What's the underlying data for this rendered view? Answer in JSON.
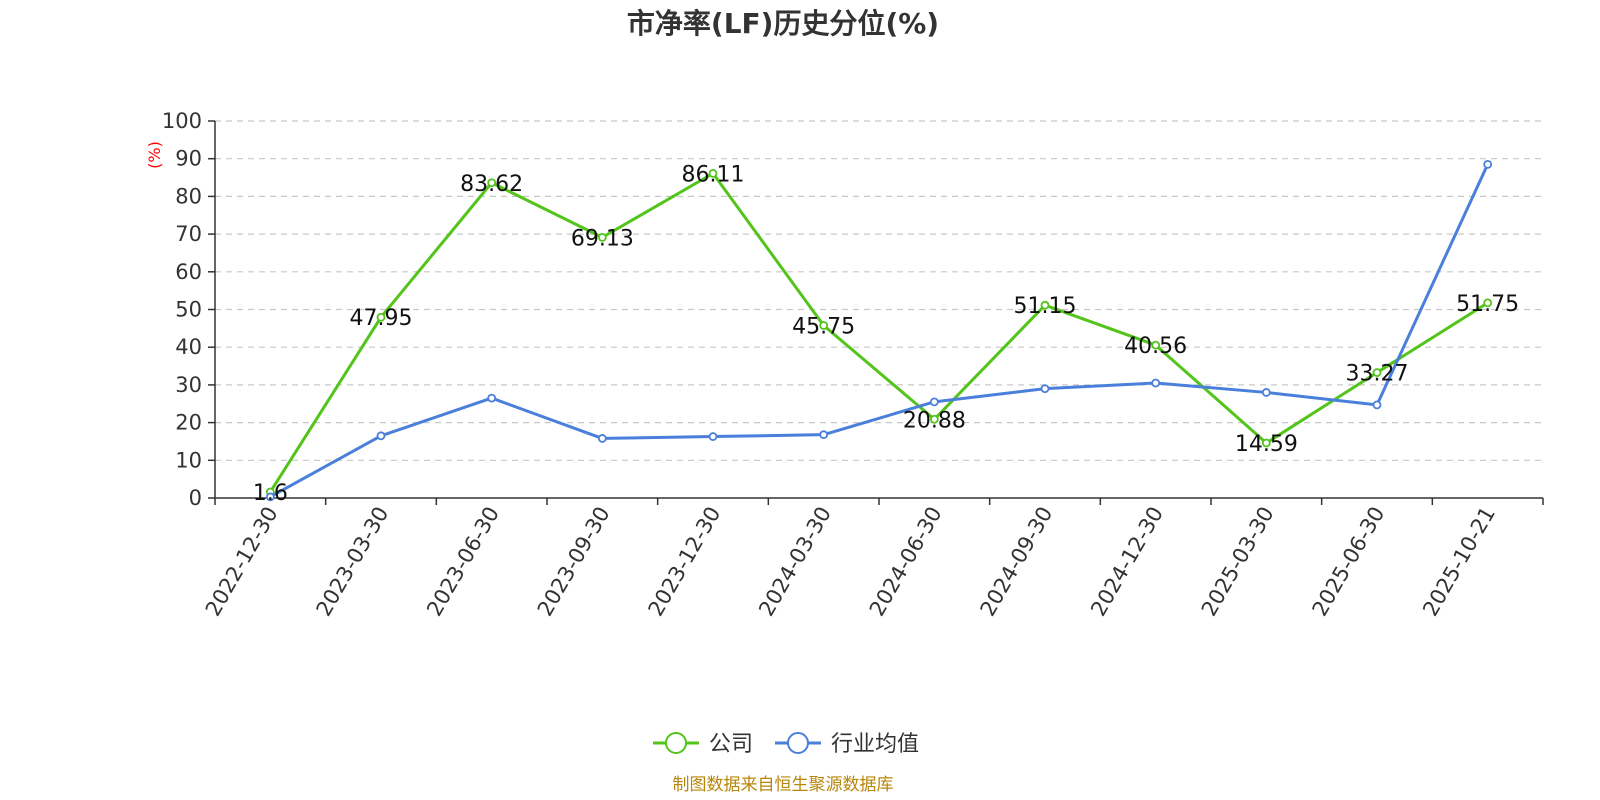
{
  "chart_data": {
    "type": "line",
    "title": "市净率(LF)历史分位(%)",
    "ylabel": "(%)",
    "xlabel": "",
    "ylim": [
      0,
      100
    ],
    "yticks": [
      0,
      10,
      20,
      30,
      40,
      50,
      60,
      70,
      80,
      90,
      100
    ],
    "grid": true,
    "legend_position": "bottom",
    "categories": [
      "2022-12-30",
      "2023-03-30",
      "2023-06-30",
      "2023-09-30",
      "2023-12-30",
      "2024-03-30",
      "2024-06-30",
      "2024-09-30",
      "2024-12-30",
      "2025-03-30",
      "2025-06-30",
      "2025-10-21"
    ],
    "series": [
      {
        "name": "公司",
        "color": "#52c41a",
        "values": [
          1.6,
          47.95,
          83.62,
          69.13,
          86.11,
          45.75,
          20.88,
          51.15,
          40.56,
          14.59,
          33.27,
          51.75
        ],
        "labels": [
          "1.6",
          "47.95",
          "83.62",
          "69.13",
          "86.11",
          "45.75",
          "20.88",
          "51.15",
          "40.56",
          "14.59",
          "33.27",
          "51.75"
        ]
      },
      {
        "name": "行业均值",
        "color": "#4a7fdb",
        "values": [
          0.3,
          16.5,
          26.5,
          15.8,
          16.3,
          16.8,
          25.5,
          29.0,
          30.5,
          28.0,
          24.7,
          88.5
        ]
      }
    ]
  },
  "footer": {
    "source": "制图数据来自恒生聚源数据库"
  }
}
